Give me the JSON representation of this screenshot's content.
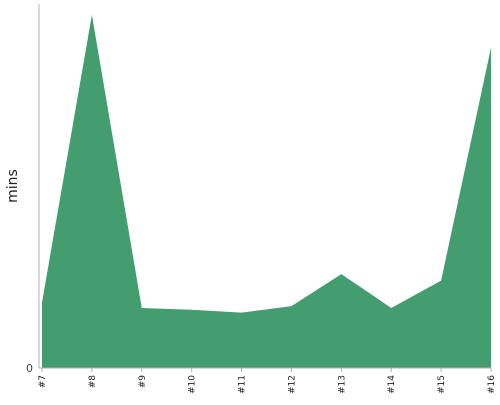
{
  "chart_data": {
    "type": "area",
    "categories": [
      "#7",
      "#8",
      "#9",
      "#10",
      "#11",
      "#12",
      "#13",
      "#14",
      "#15",
      "#16"
    ],
    "series": [
      {
        "values": [
          18,
          97,
          16.5,
          16,
          15.2,
          17,
          25.8,
          16.5,
          24,
          88
        ]
      }
    ],
    "ylabel": "mins",
    "xlabel": "",
    "y_ticks": [
      0
    ],
    "ylim": [
      0,
      100
    ],
    "grid": false,
    "colors": {
      "area": "#449d6e",
      "axis": "#b0b0b0",
      "tick": "#444444"
    }
  }
}
